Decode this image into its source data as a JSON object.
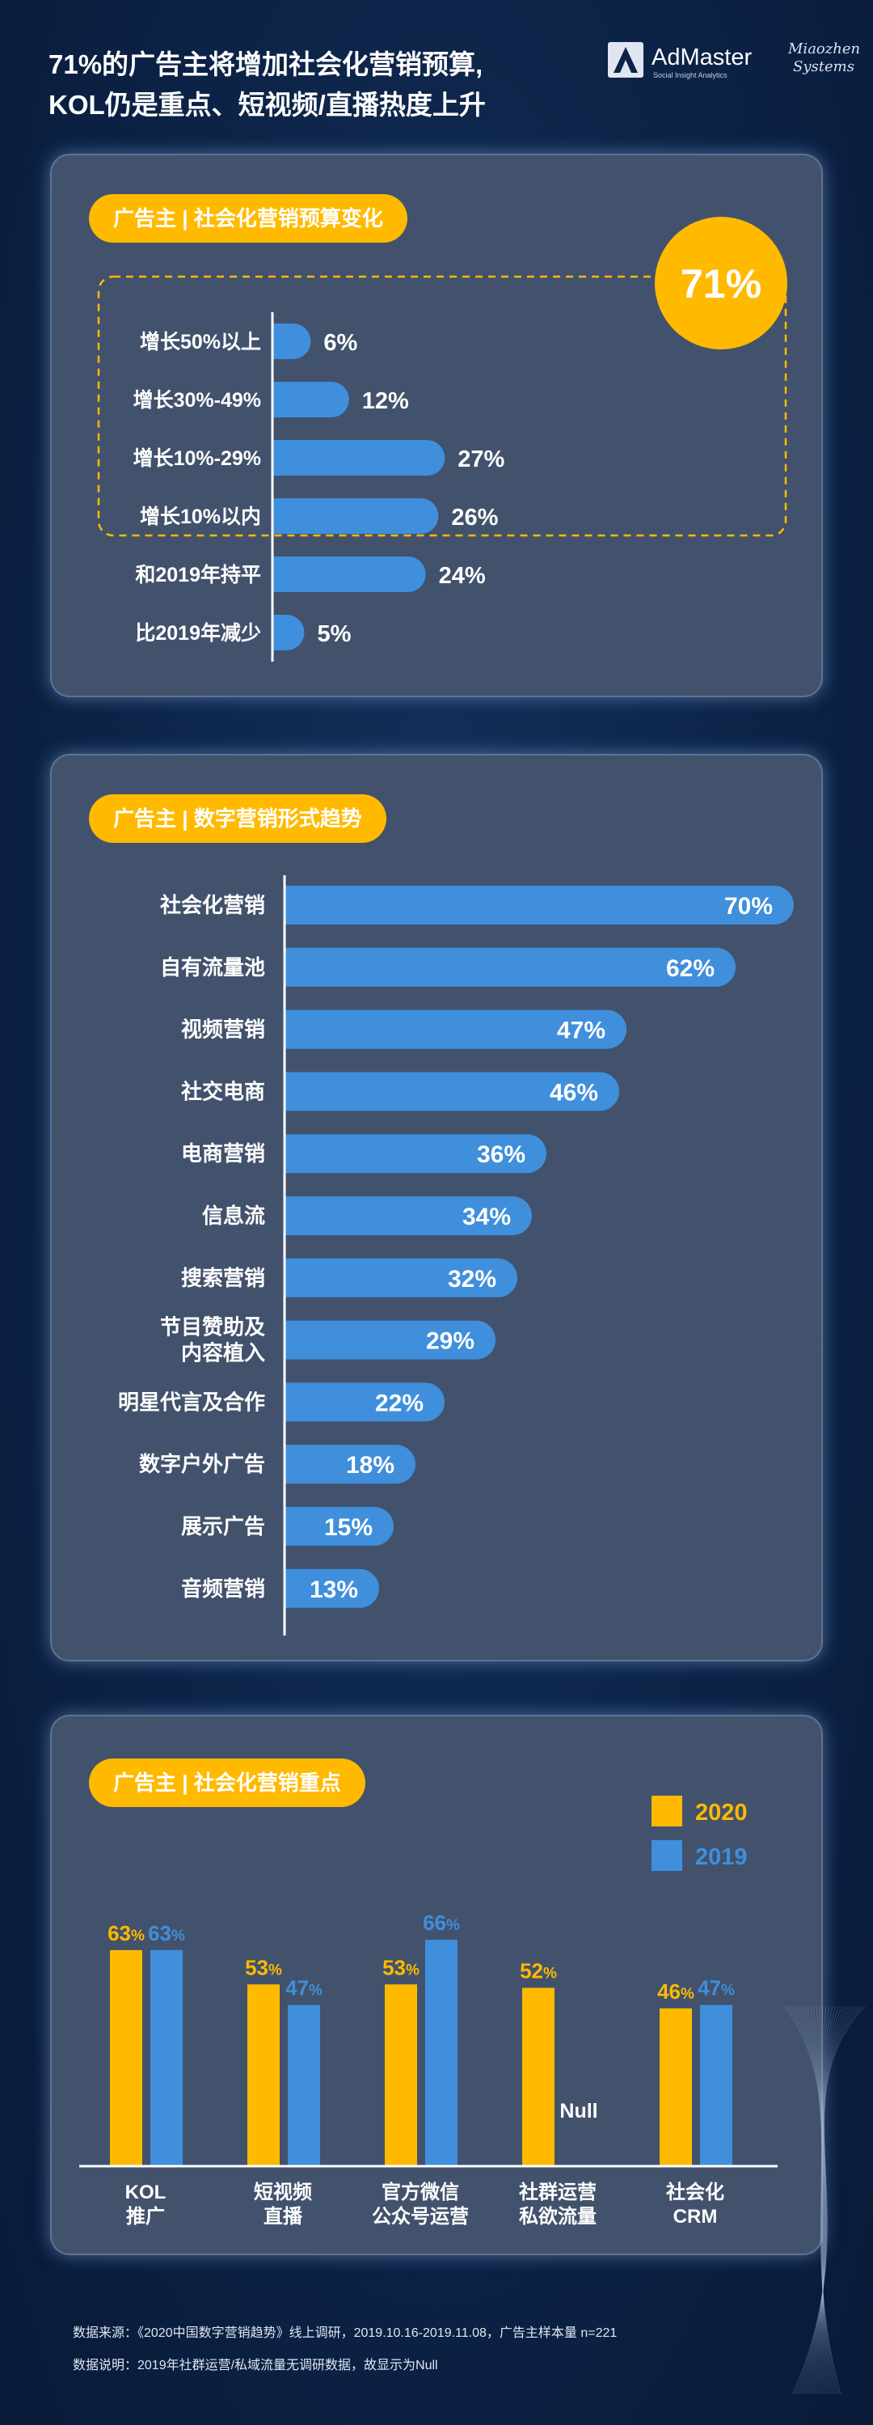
{
  "header": {
    "title_line1": "71%的广告主将增加社会化营销预算,",
    "title_line2": "KOL仍是重点、短视频/直播热度上升",
    "logo1": "AdMaster",
    "logo1_tagline": "Social Insight Analytics",
    "logo2_line1": "Miaozhen",
    "logo2_line2": "Systems"
  },
  "colors": {
    "blue": "#3f8fdc",
    "yellow": "#ffba00",
    "panel": "#42526c",
    "background": "#0c2347"
  },
  "charts": [
    {
      "pill": "广告主 | 社会化营销预算变化",
      "callout": "71%",
      "chart_data": {
        "type": "bar",
        "orientation": "horizontal",
        "categories": [
          "增长50%以上",
          "增长30%-49%",
          "增长10%-29%",
          "增长10%以内",
          "和2019年持平",
          "比2019年减少"
        ],
        "values": [
          6,
          12,
          27,
          26,
          24,
          5
        ],
        "value_labels": [
          "6%",
          "12%",
          "27%",
          "26%",
          "24%",
          "5%"
        ],
        "highlight_group": [
          "增长50%以上",
          "增长30%-49%",
          "增长10%-29%",
          "增长10%以内"
        ],
        "highlight_total": "71%"
      }
    },
    {
      "pill": "广告主 | 数字营销形式趋势",
      "chart_data": {
        "type": "bar",
        "orientation": "horizontal",
        "categories": [
          "社会化营销",
          "自有流量池",
          "视频营销",
          "社交电商",
          "电商营销",
          "信息流",
          "搜索营销",
          "节目赞助及\n内容植入",
          "明星代言及合作",
          "数字户外广告",
          "展示广告",
          "音频营销"
        ],
        "values": [
          70,
          62,
          47,
          46,
          36,
          34,
          32,
          29,
          22,
          18,
          15,
          13
        ],
        "value_labels": [
          "70%",
          "62%",
          "47%",
          "46%",
          "36%",
          "34%",
          "32%",
          "29%",
          "22%",
          "18%",
          "15%",
          "13%"
        ]
      }
    },
    {
      "pill": "广告主 | 社会化营销重点",
      "chart_data": {
        "type": "bar",
        "orientation": "vertical",
        "categories": [
          "KOL\n推广",
          "短视频\n直播",
          "官方微信\n公众号运营",
          "社群运营\n私欲流量",
          "社会化\nCRM"
        ],
        "series": [
          {
            "name": "2020",
            "values": [
              63,
              53,
              53,
              52,
              46
            ]
          },
          {
            "name": "2019",
            "values": [
              63,
              47,
              66,
              null,
              47
            ]
          }
        ],
        "null_label": "Null",
        "legend_position": "top-right"
      }
    }
  ],
  "footnotes": {
    "source": "数据来源：《2020中国数字营销趋势》线上调研，2019.10.16-2019.11.08，广告主样本量 n=221",
    "note": "数据说明：2019年社群运营/私域流量无调研数据，故显示为Null"
  }
}
